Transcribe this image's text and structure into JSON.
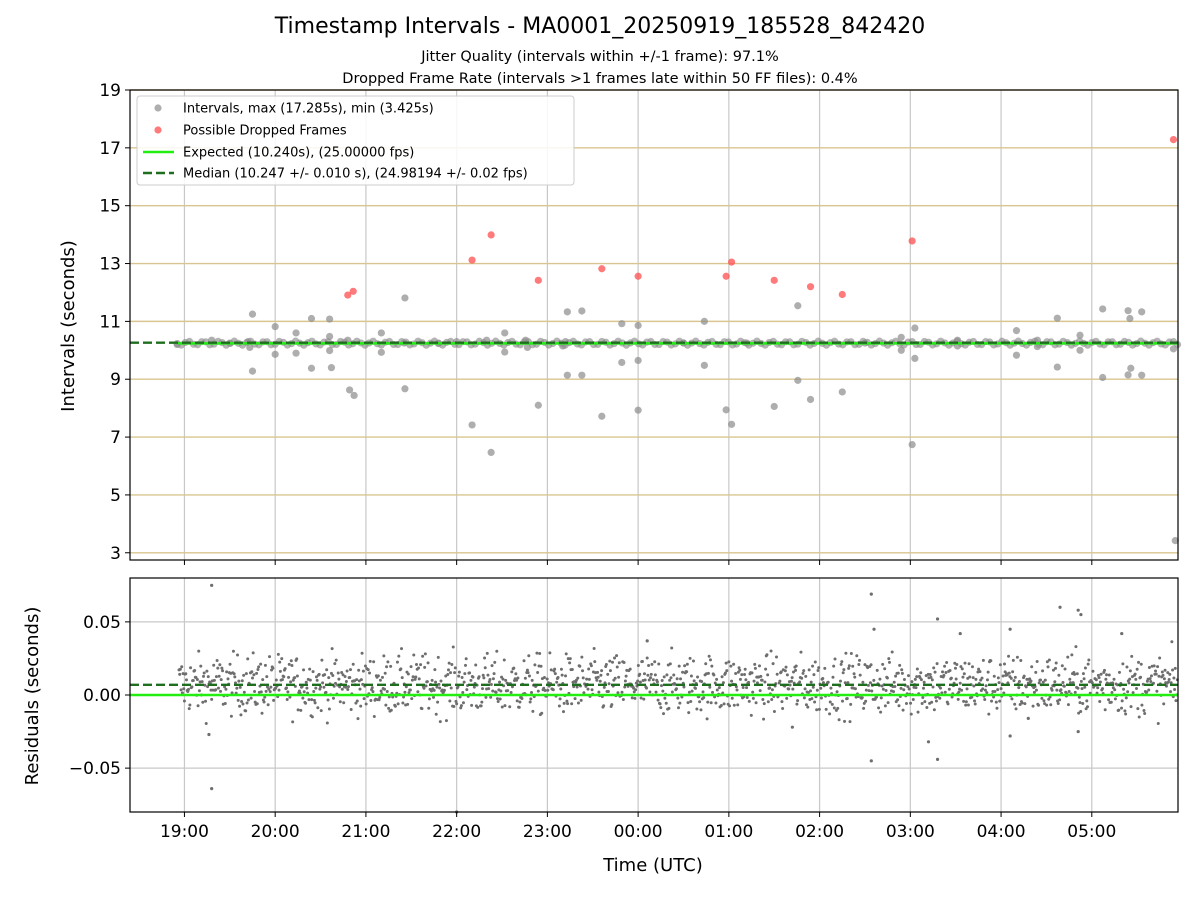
{
  "chart_data": [
    {
      "type": "scatter",
      "panel": "intervals",
      "title": "Timestamp Intervals - MA0001_20250919_185528_842420",
      "subtitle_1": "Jitter Quality (intervals within +/-1 frame): 97.1%",
      "subtitle_2": "Dropped Frame Rate (intervals >1 frames late within 50 FF files): 0.4%",
      "ylabel": "Intervals (seconds)",
      "xlabel": "",
      "xlim_hours": [
        -0.6,
        10.95
      ],
      "ylim": [
        2.75,
        19.0
      ],
      "y_ticks": [
        3,
        5,
        7,
        9,
        11,
        13,
        15,
        17,
        19
      ],
      "y_tick_labels": [
        "3",
        "5",
        "7",
        "9",
        "11",
        "13",
        "15",
        "17",
        "19"
      ],
      "x_ticks_hours": [
        0,
        1,
        2,
        3,
        4,
        5,
        6,
        7,
        8,
        9,
        10
      ],
      "x_tick_labels": [
        "19:00",
        "20:00",
        "21:00",
        "22:00",
        "23:00",
        "00:00",
        "01:00",
        "02:00",
        "03:00",
        "04:00",
        "05:00"
      ],
      "legend_position": "top-left",
      "legend": [
        "Intervals, max (17.285s), min (3.425s)",
        "Possible Dropped Frames",
        "Expected (10.240s), (25.00000 fps)",
        "Median (10.247 +/- 0.010 s), (24.98194 +/- 0.02 fps)"
      ],
      "expected_line": 10.24,
      "median_line": 10.247,
      "series": [
        {
          "name": "Intervals",
          "color": "#8c8c8c",
          "points": [
            [
              -0.08,
              10.2
            ],
            [
              0.3,
              10.35
            ],
            [
              0.5,
              10.25
            ],
            [
              0.7,
              10.3
            ],
            [
              0.72,
              10.1
            ],
            [
              0.75,
              11.25
            ],
            [
              0.75,
              9.28
            ],
            [
              1.0,
              10.82
            ],
            [
              1.0,
              9.86
            ],
            [
              1.23,
              10.6
            ],
            [
              1.23,
              9.9
            ],
            [
              1.4,
              11.1
            ],
            [
              1.4,
              9.38
            ],
            [
              1.6,
              11.08
            ],
            [
              1.6,
              10.48
            ],
            [
              1.6,
              9.99
            ],
            [
              1.62,
              9.4
            ],
            [
              1.8,
              10.35
            ],
            [
              1.82,
              8.63
            ],
            [
              1.87,
              8.44
            ],
            [
              2.17,
              10.6
            ],
            [
              2.17,
              9.93
            ],
            [
              2.43,
              11.81
            ],
            [
              2.43,
              8.67
            ],
            [
              2.42,
              10.25
            ],
            [
              3.0,
              10.3
            ],
            [
              3.17,
              7.42
            ],
            [
              3.33,
              10.35
            ],
            [
              3.38,
              6.47
            ],
            [
              3.53,
              10.6
            ],
            [
              3.53,
              9.94
            ],
            [
              3.76,
              10.35
            ],
            [
              3.78,
              10.1
            ],
            [
              3.9,
              8.1
            ],
            [
              4.2,
              10.3
            ],
            [
              4.17,
              10.15
            ],
            [
              4.22,
              11.33
            ],
            [
              4.22,
              9.14
            ],
            [
              4.38,
              11.36
            ],
            [
              4.38,
              9.14
            ],
            [
              4.6,
              7.72
            ],
            [
              4.82,
              10.92
            ],
            [
              4.82,
              9.58
            ],
            [
              5.0,
              10.86
            ],
            [
              5.0,
              9.65
            ],
            [
              5.0,
              7.93
            ],
            [
              5.73,
              11.0
            ],
            [
              5.73,
              9.48
            ],
            [
              5.97,
              7.94
            ],
            [
              6.03,
              7.44
            ],
            [
              6.5,
              8.06
            ],
            [
              6.76,
              11.54
            ],
            [
              6.76,
              8.96
            ],
            [
              6.9,
              8.3
            ],
            [
              7.25,
              8.56
            ],
            [
              7.9,
              10.45
            ],
            [
              7.9,
              10.0
            ],
            [
              8.05,
              10.77
            ],
            [
              8.05,
              9.72
            ],
            [
              8.02,
              6.74
            ],
            [
              8.52,
              10.35
            ],
            [
              8.52,
              10.15
            ],
            [
              9.17,
              10.68
            ],
            [
              9.17,
              9.83
            ],
            [
              9.4,
              10.35
            ],
            [
              9.4,
              10.13
            ],
            [
              9.62,
              11.11
            ],
            [
              9.62,
              9.42
            ],
            [
              9.87,
              10.52
            ],
            [
              9.87,
              10.0
            ],
            [
              10.12,
              11.43
            ],
            [
              10.12,
              9.06
            ],
            [
              10.4,
              11.37
            ],
            [
              10.42,
              11.1
            ],
            [
              10.43,
              9.38
            ],
            [
              10.4,
              9.15
            ],
            [
              10.55,
              11.33
            ],
            [
              10.55,
              9.14
            ],
            [
              10.9,
              10.05
            ],
            [
              10.92,
              3.42
            ],
            [
              5.5,
              10.25
            ],
            [
              6.2,
              10.25
            ],
            [
              7.5,
              10.25
            ],
            [
              2.8,
              10.25
            ]
          ]
        },
        {
          "name": "Possible Dropped Frames",
          "color": "#ff4d4d",
          "points": [
            [
              1.8,
              11.91
            ],
            [
              1.86,
              12.04
            ],
            [
              3.17,
              13.12
            ],
            [
              3.38,
              13.99
            ],
            [
              3.9,
              12.42
            ],
            [
              4.6,
              12.82
            ],
            [
              5.0,
              12.56
            ],
            [
              5.97,
              12.56
            ],
            [
              6.03,
              13.05
            ],
            [
              6.5,
              12.42
            ],
            [
              6.9,
              12.2
            ],
            [
              7.25,
              11.93
            ],
            [
              8.02,
              13.78
            ],
            [
              10.9,
              17.285
            ]
          ]
        }
      ]
    },
    {
      "type": "scatter",
      "panel": "residuals",
      "ylabel": "Residuals (seconds)",
      "xlabel": "Time (UTC)",
      "xlim_hours": [
        -0.6,
        10.95
      ],
      "ylim": [
        -0.08,
        0.08
      ],
      "y_ticks": [
        0.05,
        0.0,
        -0.05
      ],
      "y_tick_labels": [
        "0.05",
        "0.00",
        "−0.05"
      ],
      "x_ticks_hours": [
        0,
        1,
        2,
        3,
        4,
        5,
        6,
        7,
        8,
        9,
        10
      ],
      "x_tick_labels": [
        "19:00",
        "20:00",
        "21:00",
        "22:00",
        "23:00",
        "00:00",
        "01:00",
        "02:00",
        "03:00",
        "04:00",
        "05:00"
      ],
      "expected_line": 0.0,
      "median_line": 0.007,
      "residual_mean": 0.007,
      "residual_spread": 0.01,
      "series": [
        {
          "name": "Residuals",
          "color": "#6e6e6e",
          "outliers": [
            [
              0.3,
              0.075
            ],
            [
              0.3,
              -0.064
            ],
            [
              0.27,
              -0.027
            ],
            [
              3.0,
              -0.08
            ],
            [
              7.57,
              0.069
            ],
            [
              7.57,
              -0.045
            ],
            [
              7.6,
              0.045
            ],
            [
              8.3,
              0.052
            ],
            [
              8.3,
              -0.044
            ],
            [
              8.2,
              -0.032
            ],
            [
              8.55,
              0.042
            ],
            [
              9.1,
              0.045
            ],
            [
              9.1,
              -0.028
            ],
            [
              9.3,
              -0.016
            ],
            [
              9.65,
              0.06
            ],
            [
              9.85,
              0.058
            ],
            [
              9.88,
              0.055
            ],
            [
              9.85,
              -0.025
            ],
            [
              10.33,
              0.042
            ],
            [
              5.1,
              0.037
            ],
            [
              6.7,
              -0.022
            ]
          ]
        }
      ]
    }
  ],
  "colors": {
    "scatter_gray": "#8c8c8c",
    "dropped_red": "#ff4d4d",
    "expected_green": "#22ee11",
    "median_green": "#1a7a1a",
    "median_dash": "#1f6e1f",
    "gold_grid": "#d9c58f",
    "gray_grid": "#c8c8c8"
  }
}
